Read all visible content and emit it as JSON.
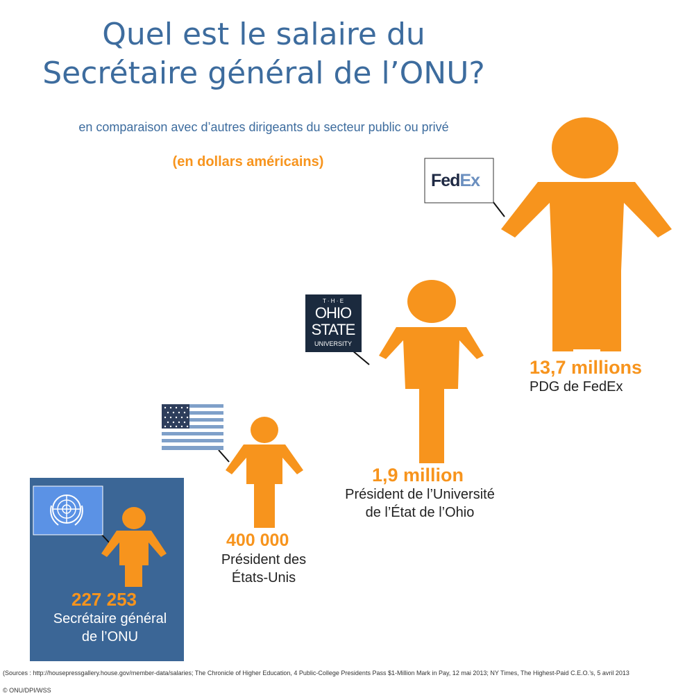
{
  "header": {
    "title_line1": "Quel est le salaire du",
    "title_line2": "Secrétaire général de l’ONU?",
    "subtitle": "en comparaison avec d’autres dirigeants du secteur public ou privé",
    "unit_note": "(en dollars américains)"
  },
  "logos": {
    "fedex_part1": "Fed",
    "fedex_part2": "Ex",
    "osu_top": "T · H · E",
    "osu_line1": "OHIO",
    "osu_line2": "STATE",
    "osu_line3": "UNIVERSITY"
  },
  "colors": {
    "figure": "#f7941d",
    "title": "#3d6c9e",
    "un_panel": "#3b6696",
    "un_flag": "#5b92e5",
    "fedex_purple": "#4d148c",
    "fedex_orange": "#ff6600",
    "osu_navy": "#1b2a3e",
    "us_blue": "#3c3b6e",
    "us_red": "#b22234"
  },
  "chart_data": {
    "type": "pictograph",
    "unit": "dollars américains",
    "categories": [
      "Secrétaire général de l’ONU",
      "Président des États-Unis",
      "Président de l’Université de l’État de l’Ohio",
      "PDG de FedEx"
    ],
    "values": [
      227253,
      400000,
      1900000,
      13700000
    ],
    "items": [
      {
        "value_label": "227 253",
        "label_line1": "Secrétaire général",
        "label_line2": "de l’ONU",
        "value": 227253,
        "flag": "un-flag-icon"
      },
      {
        "value_label": "400 000",
        "label_line1": "Président des",
        "label_line2": "États-Unis",
        "value": 400000,
        "flag": "us-flag-icon"
      },
      {
        "value_label": "1,9 million",
        "label_line1": "Président de l’Université",
        "label_line2": "de l’État de l’Ohio",
        "value": 1900000,
        "flag": "osu-logo-icon"
      },
      {
        "value_label": "13,7 millions",
        "label_line1": "PDG de FedEx",
        "label_line2": "",
        "value": 13700000,
        "flag": "fedex-logo-icon"
      }
    ]
  },
  "footer": {
    "sources": "(Sources : http://housepressgallery.house.gov/member-data/salaries; The Chronicle of Higher Education, 4 Public-College Presidents Pass $1-Million Mark in Pay, 12 mai 2013; NY Times, The Highest-Paid C.E.O.’s, 5 avril 2013",
    "credit": "© ONU/DPI/WSS"
  }
}
